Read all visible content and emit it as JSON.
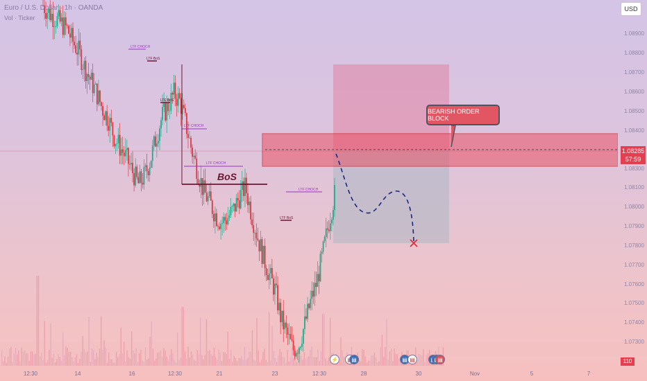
{
  "header": {
    "symbol": "Euro / U.S. Dollar · 1h · OANDA",
    "subtitle": "Vol · Ticker",
    "currency_button": "USD"
  },
  "price_axis": {
    "labels": [
      "1.08900",
      "1.08800",
      "1.08700",
      "1.08600",
      "1.08500",
      "1.08400",
      "1.08300",
      "1.08100",
      "1.08000",
      "1.07900",
      "1.07800",
      "1.07700",
      "1.07600",
      "1.07500",
      "1.07400",
      "1.07300"
    ],
    "current_price": "1.08285",
    "countdown": "57:59",
    "volume_value": "110"
  },
  "time_axis": {
    "labels": [
      "12:30",
      "14",
      "16",
      "12:30",
      "21",
      "23",
      "12:30",
      "28",
      "30",
      "Nov",
      "5",
      "7"
    ]
  },
  "annotations": {
    "bos": "BoS",
    "choch_labels": [
      "LTF CHOCH",
      "LTF BoS",
      "LTF BoS",
      "LTF CHOCH",
      "LTF CHOCH",
      "LTF CHOCH",
      "LTF BoS"
    ],
    "callout": "BEARISH ORDER BLOCK"
  },
  "events": {
    "icons": [
      "lightning",
      "us-flag",
      "us-flag-blue",
      "us-flag",
      "us-flag-blue",
      "us-flag",
      "us-flag-red"
    ]
  },
  "colors": {
    "bull": "#22aa8c",
    "bear": "#e0373f",
    "order_block": "#e23e4e",
    "choch_line": "#9b34c4",
    "bos_line": "#6d1430",
    "projection": "#1d2680"
  },
  "chart_data": {
    "type": "candlestick",
    "ylim": [
      1.0757,
      1.0904
    ],
    "order_block": [
      1.0827,
      1.0839
    ],
    "current_price": 1.08285,
    "projection_target": 1.0781,
    "short_position_zone": {
      "entry": 1.0829,
      "stop": 1.0874,
      "target": 1.0783
    },
    "close_path": [
      1.0902,
      1.0899,
      1.0897,
      1.0895,
      1.0893,
      1.0888,
      1.0884,
      1.0878,
      1.0873,
      1.0868,
      1.0862,
      1.0858,
      1.0851,
      1.0847,
      1.0843,
      1.0838,
      1.0833,
      1.0836,
      1.0842,
      1.0851,
      1.0859,
      1.0863,
      1.0868,
      1.0865,
      1.0856,
      1.0846,
      1.0838,
      1.083,
      1.0826,
      1.0821,
      1.0818,
      1.082,
      1.0823,
      1.0828,
      1.0832,
      1.0822,
      1.0813,
      1.0805,
      1.0798,
      1.0792,
      1.0781,
      1.0775,
      1.0769,
      1.0771,
      1.0779,
      1.0788,
      1.0795,
      1.0806,
      1.0818,
      1.0829
    ]
  }
}
